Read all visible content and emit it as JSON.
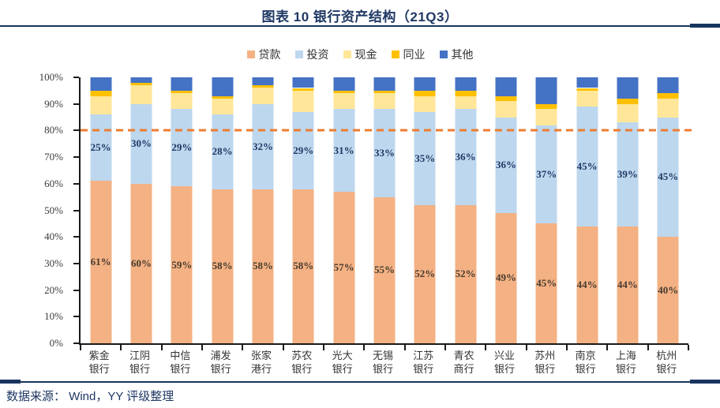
{
  "header": {
    "title": "图表 10 银行资产结构（21Q3）"
  },
  "source": {
    "label": "数据来源： Wind，YY 评级整理"
  },
  "colors": {
    "title_navy": "#1F3864",
    "rule_navy": "#17355E",
    "axis_black": "#1a1a1a",
    "reference_line_orange": "#ED7D31",
    "loans": "#F4B183",
    "investment": "#BDD7EE",
    "cash": "#FFE699",
    "interbank": "#FFC000",
    "other": "#4472C4"
  },
  "chart_data": {
    "type": "bar",
    "subtype": "stacked-100-percent",
    "title": "图表 10 银行资产结构（21Q3）",
    "legend_position": "top",
    "grid": false,
    "ylim": [
      0,
      100
    ],
    "yticks": [
      "0%",
      "10%",
      "20%",
      "30%",
      "40%",
      "50%",
      "60%",
      "70%",
      "80%",
      "90%",
      "100%"
    ],
    "reference_line": {
      "value": 80,
      "style": "dashed",
      "color": "#ED7D31"
    },
    "categories": [
      "紫金银行",
      "江阴银行",
      "中信银行",
      "浦发银行",
      "张家港行",
      "苏农银行",
      "光大银行",
      "无锡银行",
      "江苏银行",
      "青农商行",
      "兴业银行",
      "苏州银行",
      "南京银行",
      "上海银行",
      "杭州银行"
    ],
    "categories_two_line": [
      [
        "紫金",
        "银行"
      ],
      [
        "江阴",
        "银行"
      ],
      [
        "中信",
        "银行"
      ],
      [
        "浦发",
        "银行"
      ],
      [
        "张家",
        "港行"
      ],
      [
        "苏农",
        "银行"
      ],
      [
        "光大",
        "银行"
      ],
      [
        "无锡",
        "银行"
      ],
      [
        "江苏",
        "银行"
      ],
      [
        "青农",
        "商行"
      ],
      [
        "兴业",
        "银行"
      ],
      [
        "苏州",
        "银行"
      ],
      [
        "南京",
        "银行"
      ],
      [
        "上海",
        "银行"
      ],
      [
        "杭州",
        "银行"
      ]
    ],
    "series": [
      {
        "name": "贷款",
        "color": "#F4B183",
        "labels_shown": true,
        "values": [
          61,
          60,
          59,
          58,
          58,
          58,
          57,
          55,
          52,
          52,
          49,
          45,
          44,
          44,
          40
        ]
      },
      {
        "name": "投资",
        "color": "#BDD7EE",
        "labels_shown": true,
        "values": [
          25,
          30,
          29,
          28,
          32,
          29,
          31,
          33,
          35,
          36,
          36,
          37,
          45,
          39,
          45
        ]
      },
      {
        "name": "现金",
        "color": "#FFE699",
        "labels_shown": false,
        "estimated": true,
        "values": [
          7,
          7,
          6,
          6,
          6,
          8,
          6,
          6,
          6,
          5,
          6,
          6,
          6,
          7,
          7
        ]
      },
      {
        "name": "同业",
        "color": "#FFC000",
        "labels_shown": false,
        "estimated": true,
        "values": [
          2,
          1,
          1,
          1,
          1,
          1,
          1,
          1,
          2,
          2,
          2,
          2,
          1,
          2,
          2
        ]
      },
      {
        "name": "其他",
        "color": "#4472C4",
        "labels_shown": false,
        "estimated": true,
        "values": [
          5,
          2,
          5,
          7,
          3,
          4,
          5,
          5,
          5,
          5,
          7,
          10,
          4,
          8,
          6
        ]
      }
    ]
  }
}
